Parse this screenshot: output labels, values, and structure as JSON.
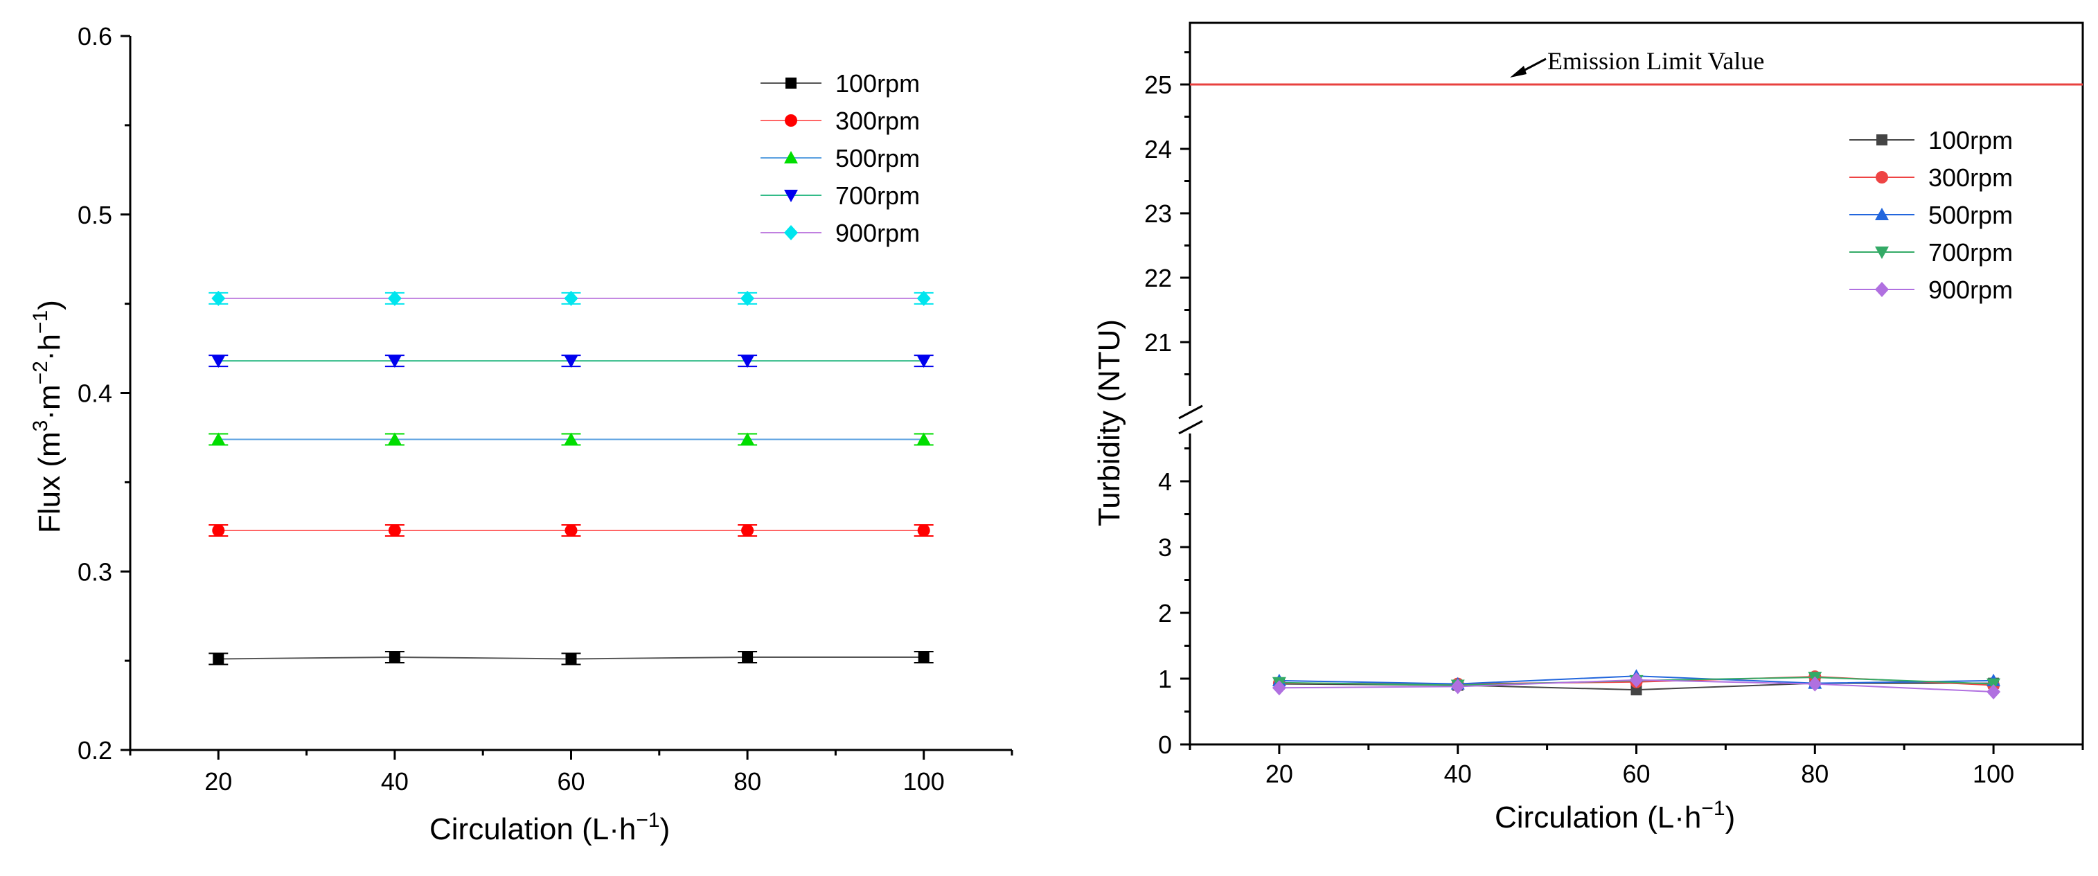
{
  "chart_data": [
    {
      "type": "line",
      "title": "",
      "xlabel": "Circulation (L·h",
      "xlabel_sup": "−1",
      "xlabel_end": ")",
      "ylabel": "Flux (m",
      "ylabel_parts": [
        "3",
        "·m",
        "−2",
        "·h",
        "−1",
        ")"
      ],
      "x": [
        20,
        40,
        60,
        80,
        100
      ],
      "xlim": [
        10,
        110
      ],
      "ylim": [
        0.2,
        0.6
      ],
      "x_tick_labels": [
        "20",
        "40",
        "60",
        "80",
        "100"
      ],
      "y_tick_labels": [
        "0.2",
        "0.3",
        "0.4",
        "0.5",
        "0.6"
      ],
      "legend_position": "top-right",
      "error_bars": true,
      "series": [
        {
          "name": "100rpm",
          "color": "#000000",
          "marker": "square",
          "values": [
            0.251,
            0.252,
            0.251,
            0.252,
            0.252
          ]
        },
        {
          "name": "300rpm",
          "color": "#ff0000",
          "marker": "circle",
          "values": [
            0.323,
            0.323,
            0.323,
            0.323,
            0.323
          ]
        },
        {
          "name": "500rpm",
          "color": "#00dd00",
          "marker": "triangle-up",
          "values": [
            0.374,
            0.374,
            0.374,
            0.374,
            0.374
          ]
        },
        {
          "name": "700rpm",
          "color": "#0000ee",
          "marker": "triangle-down",
          "values": [
            0.418,
            0.418,
            0.418,
            0.418,
            0.418
          ]
        },
        {
          "name": "900rpm",
          "color": "#00e5ee",
          "marker": "diamond",
          "values": [
            0.453,
            0.453,
            0.453,
            0.453,
            0.453
          ]
        }
      ],
      "series_line_colors": [
        "#555555",
        "#ff6666",
        "#5aa0e0",
        "#33bb88",
        "#c080e0"
      ]
    },
    {
      "type": "line",
      "title": "",
      "xlabel": "Circulation (L·h",
      "xlabel_sup": "−1",
      "xlabel_end": ")",
      "ylabel": "Turbidity (NTU)",
      "x": [
        20,
        40,
        60,
        80,
        100
      ],
      "xlim": [
        10,
        110
      ],
      "axis_break": true,
      "ylim_lower": [
        0,
        5
      ],
      "ylim_upper": [
        20,
        26
      ],
      "x_tick_labels": [
        "20",
        "40",
        "60",
        "80",
        "100"
      ],
      "y_tick_labels_lower": [
        "0",
        "1",
        "2",
        "3",
        "4"
      ],
      "y_tick_labels_upper": [
        "21",
        "22",
        "23",
        "24",
        "25"
      ],
      "reference_line": {
        "value": 25,
        "label": "Emission Limit Value",
        "color": "#e8413f"
      },
      "legend_position": "top-right",
      "series": [
        {
          "name": "100rpm",
          "color": "#444444",
          "marker": "square",
          "values": [
            0.92,
            0.9,
            0.83,
            0.93,
            0.93
          ]
        },
        {
          "name": "300rpm",
          "color": "#ee4444",
          "marker": "circle",
          "values": [
            0.93,
            0.92,
            0.95,
            1.03,
            0.9
          ]
        },
        {
          "name": "500rpm",
          "color": "#2266dd",
          "marker": "triangle-up",
          "values": [
            0.97,
            0.92,
            1.04,
            0.93,
            0.97
          ]
        },
        {
          "name": "700rpm",
          "color": "#33aa66",
          "marker": "triangle-down",
          "values": [
            0.94,
            0.9,
            0.97,
            1.02,
            0.92
          ]
        },
        {
          "name": "900rpm",
          "color": "#b070e0",
          "marker": "diamond",
          "values": [
            0.86,
            0.88,
            0.98,
            0.92,
            0.8
          ]
        }
      ]
    }
  ]
}
